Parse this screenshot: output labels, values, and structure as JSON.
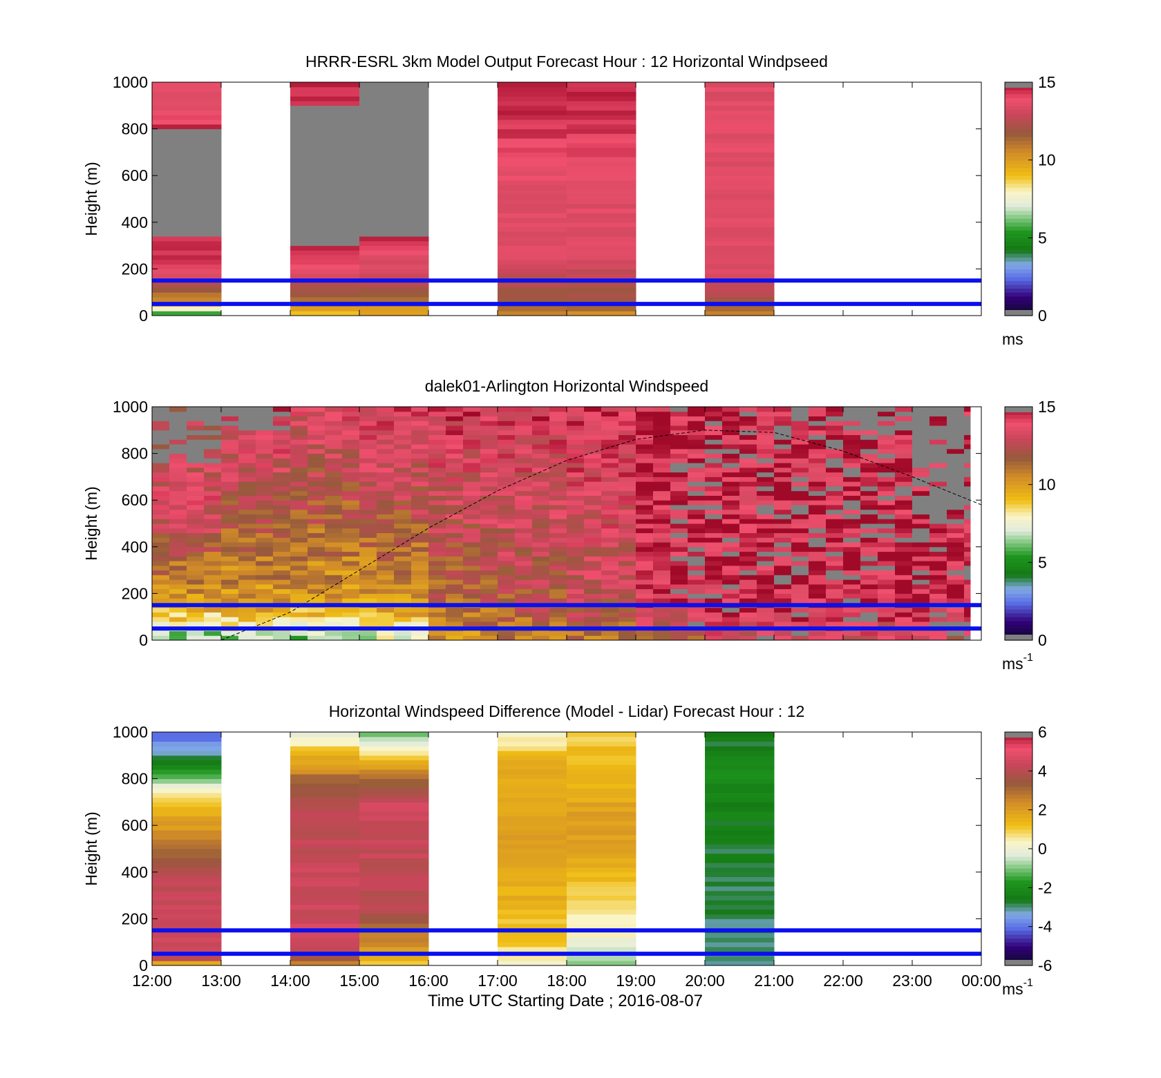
{
  "figure": {
    "xlabel": "Time UTC  Starting Date ; 2016-08-07",
    "x_ticks": [
      "12:00",
      "13:00",
      "14:00",
      "15:00",
      "16:00",
      "17:00",
      "18:00",
      "19:00",
      "20:00",
      "21:00",
      "22:00",
      "23:00",
      "00:00"
    ],
    "y_ticks": [
      "0",
      "200",
      "400",
      "600",
      "800",
      "1000"
    ],
    "ylabel": "Height (m)",
    "reference_lines_m": [
      50,
      150
    ],
    "reference_line_color": "#0a10ee",
    "no_data_color": "#808080"
  },
  "chart_data": [
    {
      "type": "heatmap",
      "title": "HRRR-ESRL 3km Model Output   Forecast Hour : 12 Horizontal Windpseed",
      "ylabel": "Height (m)",
      "xlim": [
        "12:00",
        "00:00"
      ],
      "ylim": [
        0,
        1000
      ],
      "colorbar": {
        "range": [
          0,
          15
        ],
        "ticks": [
          "0",
          "5",
          "10",
          "15"
        ],
        "unit": "ms",
        "unit_sup": ""
      },
      "columns": [
        {
          "start": "12:00",
          "end": "13:00",
          "profile": [
            [
              0,
              5
            ],
            [
              30,
              7.5
            ],
            [
              50,
              10
            ],
            [
              80,
              11
            ],
            [
              120,
              12
            ],
            [
              150,
              13
            ],
            [
              200,
              14
            ],
            [
              280,
              14.5
            ],
            [
              350,
              null
            ],
            [
              800,
              14.5
            ],
            [
              900,
              13.5
            ]
          ]
        },
        {
          "start": "14:00",
          "end": "15:00",
          "profile": [
            [
              0,
              8
            ],
            [
              40,
              11
            ],
            [
              120,
              12
            ],
            [
              150,
              13
            ],
            [
              200,
              14
            ],
            [
              260,
              14.5
            ],
            [
              300,
              null
            ],
            [
              900,
              14.5
            ]
          ]
        },
        {
          "start": "15:00",
          "end": "16:00",
          "profile": [
            [
              0,
              9.5
            ],
            [
              30,
              10
            ],
            [
              60,
              11
            ],
            [
              100,
              12
            ],
            [
              150,
              12.5
            ],
            [
              180,
              13
            ],
            [
              250,
              13.5
            ],
            [
              300,
              14.5
            ],
            [
              350,
              null
            ]
          ]
        },
        {
          "start": "17:00",
          "end": "18:00",
          "profile": [
            [
              0,
              10
            ],
            [
              30,
              11.5
            ],
            [
              100,
              12
            ],
            [
              150,
              12.5
            ],
            [
              200,
              13
            ],
            [
              250,
              13.5
            ],
            [
              350,
              13.5
            ],
            [
              500,
              13.5
            ],
            [
              700,
              14
            ],
            [
              850,
              14.5
            ]
          ]
        },
        {
          "start": "18:00",
          "end": "19:00",
          "profile": [
            [
              0,
              10
            ],
            [
              30,
              11.5
            ],
            [
              100,
              12
            ],
            [
              150,
              12.5
            ],
            [
              200,
              13
            ],
            [
              250,
              13.5
            ],
            [
              350,
              13.5
            ],
            [
              500,
              13.5
            ],
            [
              700,
              14
            ],
            [
              850,
              14.5
            ]
          ]
        },
        {
          "start": "20:00",
          "end": "21:00",
          "profile": [
            [
              0,
              10
            ],
            [
              30,
              11.5
            ],
            [
              70,
              12
            ],
            [
              130,
              13
            ],
            [
              200,
              13.5
            ],
            [
              260,
              13.5
            ],
            [
              1000,
              13.5
            ]
          ]
        }
      ]
    },
    {
      "type": "heatmap",
      "title": "dalek01-Arlington  Horizontal Windspeed",
      "ylabel": "Height (m)",
      "xlim": [
        "12:00",
        "00:00"
      ],
      "ylim": [
        0,
        1000
      ],
      "colorbar": {
        "range": [
          0,
          15
        ],
        "ticks": [
          "0",
          "5",
          "10",
          "15"
        ],
        "unit": "ms",
        "unit_sup": "-1"
      },
      "column_width_h": 0.25,
      "speed_profile_by_hour": [
        {
          "hour": "12:00",
          "low": 6,
          "mid": 10,
          "high": 13.5,
          "top": 12
        },
        {
          "hour": "13:00",
          "low": 6.5,
          "mid": 10,
          "high": 12.5,
          "top": 14
        },
        {
          "hour": "14:00",
          "low": 6,
          "mid": 10,
          "high": 12,
          "top": 13.5
        },
        {
          "hour": "15:00",
          "low": 7,
          "mid": 10,
          "high": 12.5,
          "top": 14
        },
        {
          "hour": "16:00",
          "low": 10.5,
          "mid": 11.5,
          "high": 13,
          "top": 14
        },
        {
          "hour": "17:00",
          "low": 11,
          "mid": 12,
          "high": 13,
          "top": 14
        },
        {
          "hour": "18:00",
          "low": 11,
          "mid": 12.5,
          "high": 13.5,
          "top": 14
        },
        {
          "hour": "19:00",
          "low": 12,
          "mid": 14,
          "high": 14.5,
          "top": 14.5
        },
        {
          "hour": "20:00",
          "low": 13,
          "mid": 14.5,
          "high": 14.5,
          "top": 14.5
        },
        {
          "hour": "21:00",
          "low": 13,
          "mid": 14.5,
          "high": 14.5,
          "top": 14.5
        },
        {
          "hour": "22:00",
          "low": 13,
          "mid": 14.5,
          "high": 14.5,
          "top": 14.5
        },
        {
          "hour": "23:00",
          "low": 13,
          "mid": 14.5,
          "high": 14.5,
          "top": 14.5
        },
        {
          "hour": "00:00",
          "low": 13,
          "mid": 14.5,
          "high": 14.5,
          "top": 14.5
        }
      ],
      "missing_data_top_m_by_hour": [
        {
          "hour": "12:00",
          "above_m": 750
        },
        {
          "hour": "13:00",
          "above_m": 900
        },
        {
          "hour": "14:00",
          "above_m": 1000
        },
        {
          "hour": "16:00",
          "above_m": 1000
        },
        {
          "hour": "19:00",
          "above_m": 1000
        },
        {
          "hour": "20:00",
          "above_m": 990
        },
        {
          "hour": "21:00",
          "above_m": 990
        },
        {
          "hour": "22:00",
          "above_m": 900
        },
        {
          "hour": "23:00",
          "above_m": 500
        },
        {
          "hour": "00:00",
          "above_m": 80
        }
      ],
      "boundary_layer_curve": {
        "times": [
          "13:00",
          "14:00",
          "15:00",
          "16:00",
          "17:00",
          "18:00",
          "19:00",
          "20:00",
          "21:00",
          "22:00",
          "23:00",
          "00:00"
        ],
        "heights_m": [
          0,
          120,
          300,
          480,
          640,
          770,
          860,
          900,
          890,
          810,
          700,
          580
        ]
      }
    },
    {
      "type": "heatmap",
      "title": "Horizontal Windspeed Difference (Model - Lidar) Forecast Hour : 12",
      "ylabel": "Height (m)",
      "xlabel": "Time UTC  Starting Date ; 2016-08-07",
      "xlim": [
        "12:00",
        "00:00"
      ],
      "ylim": [
        0,
        1000
      ],
      "colorbar": {
        "range": [
          -6,
          6
        ],
        "ticks": [
          "-6",
          "-4",
          "-2",
          "0",
          "2",
          "4",
          "6"
        ],
        "unit": "ms",
        "unit_sup": "-1"
      },
      "columns": [
        {
          "start": "12:00",
          "end": "13:00",
          "profile": [
            [
              0,
              1
            ],
            [
              30,
              4
            ],
            [
              100,
              4.5
            ],
            [
              400,
              4
            ],
            [
              500,
              3
            ],
            [
              600,
              2
            ],
            [
              700,
              1
            ],
            [
              750,
              0
            ],
            [
              800,
              -1
            ],
            [
              850,
              -2
            ],
            [
              900,
              -3
            ],
            [
              980,
              -4
            ]
          ]
        },
        {
          "start": "14:00",
          "end": "15:00",
          "profile": [
            [
              0,
              2.5
            ],
            [
              50,
              4
            ],
            [
              150,
              4.5
            ],
            [
              700,
              4
            ],
            [
              800,
              3
            ],
            [
              900,
              1.5
            ],
            [
              970,
              0
            ]
          ]
        },
        {
          "start": "15:00",
          "end": "16:00",
          "profile": [
            [
              0,
              1
            ],
            [
              60,
              2
            ],
            [
              150,
              3
            ],
            [
              250,
              4
            ],
            [
              700,
              4.5
            ],
            [
              800,
              3
            ],
            [
              900,
              1
            ],
            [
              980,
              -1
            ]
          ]
        },
        {
          "start": "17:00",
          "end": "18:00",
          "profile": [
            [
              0,
              0
            ],
            [
              100,
              1
            ],
            [
              300,
              1.5
            ],
            [
              600,
              2
            ],
            [
              900,
              1.5
            ],
            [
              990,
              0
            ]
          ]
        },
        {
          "start": "18:00",
          "end": "19:00",
          "profile": [
            [
              0,
              -1
            ],
            [
              100,
              0
            ],
            [
              250,
              0.8
            ],
            [
              400,
              1.5
            ],
            [
              600,
              2
            ],
            [
              800,
              1.5
            ],
            [
              1000,
              1
            ]
          ]
        },
        {
          "start": "20:00",
          "end": "21:00",
          "profile": [
            [
              0,
              -3.2
            ],
            [
              150,
              -3
            ],
            [
              400,
              -2.8
            ],
            [
              700,
              -2.3
            ],
            [
              800,
              -2
            ],
            [
              1000,
              -2.8
            ]
          ]
        }
      ]
    }
  ]
}
